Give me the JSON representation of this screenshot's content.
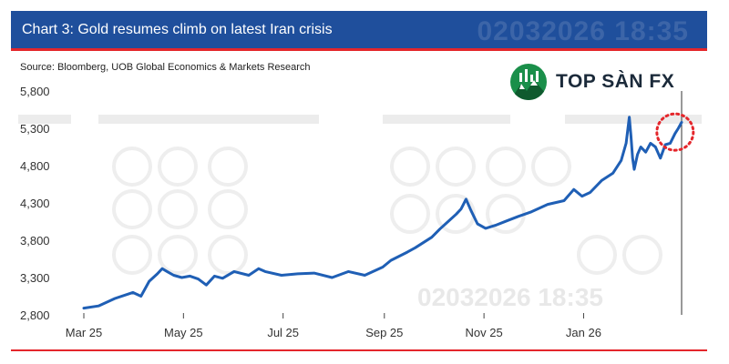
{
  "header": {
    "title": "Chart 3: Gold resumes climb on latest Iran crisis",
    "watermark": "02032026 18:35"
  },
  "source": "Source: Bloomberg, UOB Global Economics & Markets Research",
  "logo": {
    "text": "TOP SÀN FX"
  },
  "colors": {
    "header_bg": "#1f4f9c",
    "accent_red": "#e4262b",
    "line": "#1f5fb5",
    "logo_green": "#1a8f4a"
  },
  "chart_data": {
    "type": "line",
    "title": "Chart 3: Gold resumes climb on latest Iran crisis",
    "xlabel": "",
    "ylabel": "",
    "ylim": [
      2800,
      5800
    ],
    "yticks": [
      2800,
      3300,
      3800,
      4300,
      4800,
      5300,
      5800
    ],
    "ytick_labels": [
      "2,800",
      "3,300",
      "3,800",
      "4,300",
      "4,800",
      "5,300",
      "5,800"
    ],
    "xlim": [
      "2025-03-01",
      "2026-03-02"
    ],
    "xticks": [
      "2025-03-01",
      "2025-05-01",
      "2025-07-01",
      "2025-09-01",
      "2025-11-01",
      "2026-01-01"
    ],
    "xtick_labels": [
      "Mar 25",
      "May 25",
      "Jul 25",
      "Sep 25",
      "Nov 25",
      "Jan 26"
    ],
    "grid": false,
    "legend": "none",
    "highlight": {
      "shape": "dotted-circle",
      "color": "#e4262b",
      "x": "2026-02-26",
      "y": 5250
    },
    "series": [
      {
        "x": [
          "2025-03-01",
          "2025-03-10",
          "2025-03-20",
          "2025-03-31",
          "2025-04-05",
          "2025-04-10",
          "2025-04-15",
          "2025-04-18",
          "2025-04-21",
          "2025-04-25",
          "2025-04-30",
          "2025-05-05",
          "2025-05-10",
          "2025-05-15",
          "2025-05-20",
          "2025-05-25",
          "2025-06-01",
          "2025-06-10",
          "2025-06-16",
          "2025-06-20",
          "2025-06-30",
          "2025-07-10",
          "2025-07-20",
          "2025-07-31",
          "2025-08-10",
          "2025-08-20",
          "2025-08-31",
          "2025-09-05",
          "2025-09-15",
          "2025-09-20",
          "2025-09-30",
          "2025-10-05",
          "2025-10-10",
          "2025-10-15",
          "2025-10-18",
          "2025-10-21",
          "2025-10-24",
          "2025-10-28",
          "2025-11-02",
          "2025-11-08",
          "2025-11-15",
          "2025-11-22",
          "2025-11-30",
          "2025-12-10",
          "2025-12-20",
          "2025-12-26",
          "2025-12-31",
          "2026-01-05",
          "2026-01-12",
          "2026-01-19",
          "2026-01-24",
          "2026-01-27",
          "2026-01-29",
          "2026-01-30",
          "2026-01-31",
          "2026-02-01",
          "2026-02-03",
          "2026-02-05",
          "2026-02-08",
          "2026-02-11",
          "2026-02-14",
          "2026-02-17",
          "2026-02-20",
          "2026-02-23",
          "2026-02-26",
          "2026-02-28",
          "2026-03-02"
        ],
        "values": [
          2890,
          2920,
          3020,
          3100,
          3050,
          3250,
          3350,
          3420,
          3380,
          3330,
          3300,
          3320,
          3280,
          3200,
          3320,
          3290,
          3380,
          3330,
          3420,
          3380,
          3330,
          3350,
          3360,
          3300,
          3380,
          3330,
          3440,
          3530,
          3640,
          3700,
          3840,
          3950,
          4050,
          4150,
          4220,
          4350,
          4200,
          4020,
          3960,
          4000,
          4060,
          4120,
          4180,
          4280,
          4330,
          4480,
          4390,
          4440,
          4600,
          4700,
          4870,
          5100,
          5450,
          5200,
          4900,
          4750,
          4950,
          5050,
          4980,
          5100,
          5050,
          4900,
          5080,
          5100,
          5230,
          5300,
          5380
        ]
      }
    ]
  }
}
